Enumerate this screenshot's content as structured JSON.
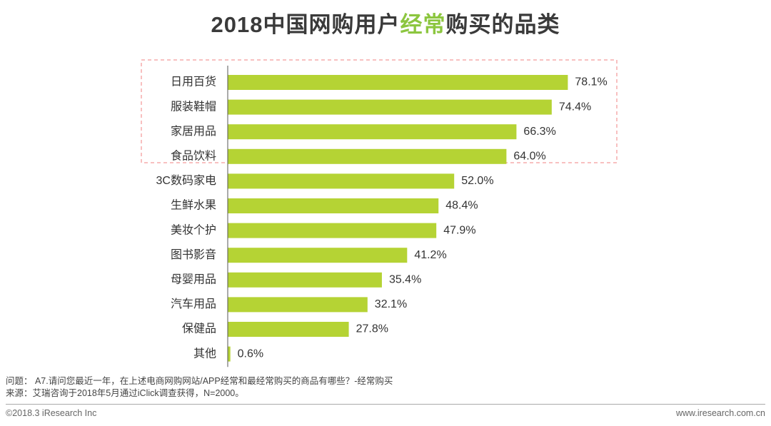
{
  "title": {
    "part1": "2018中国网购用户",
    "highlight": "经常",
    "part2": "购买的品类"
  },
  "colors": {
    "bar": "#b5d334",
    "highlight_text": "#8cc63f",
    "box": "#f08080"
  },
  "chart_data": {
    "type": "bar",
    "orientation": "horizontal",
    "title": "2018中国网购用户经常购买的品类",
    "categories": [
      "日用百货",
      "服装鞋帽",
      "家居用品",
      "食品饮料",
      "3C数码家电",
      "生鲜水果",
      "美妆个护",
      "图书影音",
      "母婴用品",
      "汽车用品",
      "保健品",
      "其他"
    ],
    "values": [
      78.1,
      74.4,
      66.3,
      64.0,
      52.0,
      48.4,
      47.9,
      41.2,
      35.4,
      32.1,
      27.8,
      0.6
    ],
    "value_labels": [
      "78.1%",
      "74.4%",
      "66.3%",
      "64.0%",
      "52.0%",
      "48.4%",
      "47.9%",
      "41.2%",
      "35.4%",
      "32.1%",
      "27.8%",
      "0.6%"
    ],
    "unit": "%",
    "xlim": [
      0,
      100
    ],
    "highlighted_categories": [
      "日用百货",
      "服装鞋帽",
      "家居用品",
      "食品饮料"
    ],
    "xlabel": "",
    "ylabel": ""
  },
  "notes": {
    "question": "问题：  A7.请问您最近一年，在上述电商网购网站/APP经常和最经常购买的商品有哪些？-经常购买",
    "source": "来源：艾瑞咨询于2018年5月通过iClick调查获得，N=2000。"
  },
  "footer": {
    "copyright": "©2018.3 iResearch Inc",
    "website": "www.iresearch.com.cn"
  }
}
